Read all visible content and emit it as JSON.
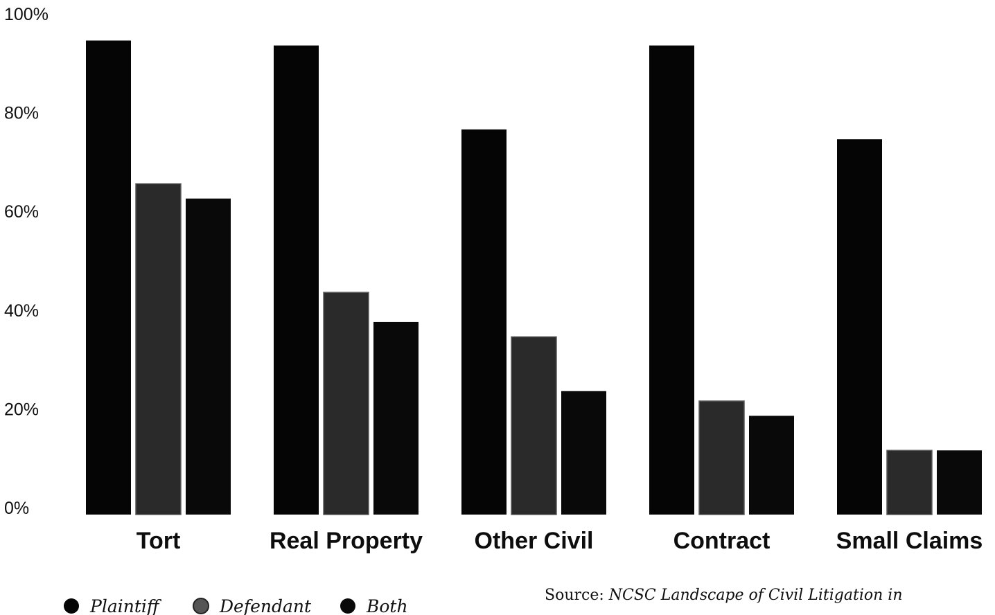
{
  "chart_data": {
    "type": "bar",
    "title": "",
    "xlabel": "",
    "ylabel": "",
    "ylim": [
      0,
      100
    ],
    "yticks": [
      "0%",
      "20%",
      "40%",
      "60%",
      "80%",
      "100%"
    ],
    "ytick_values": [
      0,
      20,
      40,
      60,
      80,
      100
    ],
    "categories": [
      "Tort",
      "Real Property",
      "Other Civil",
      "Contract",
      "Small Claims"
    ],
    "series": [
      {
        "name": "Plaintiff",
        "color": "#050505",
        "values": [
          96,
          95,
          78,
          95,
          76
        ]
      },
      {
        "name": "Defendant",
        "color": "#2a2a2a",
        "values": [
          67,
          45,
          36,
          23,
          13
        ]
      },
      {
        "name": "Both",
        "color": "#090909",
        "values": [
          64,
          39,
          25,
          20,
          13
        ]
      }
    ],
    "grid": false,
    "legend_position": "bottom-left"
  },
  "source": {
    "prefix": "Source: ",
    "title": "NCSC Landscape of Civil Litigation in"
  }
}
